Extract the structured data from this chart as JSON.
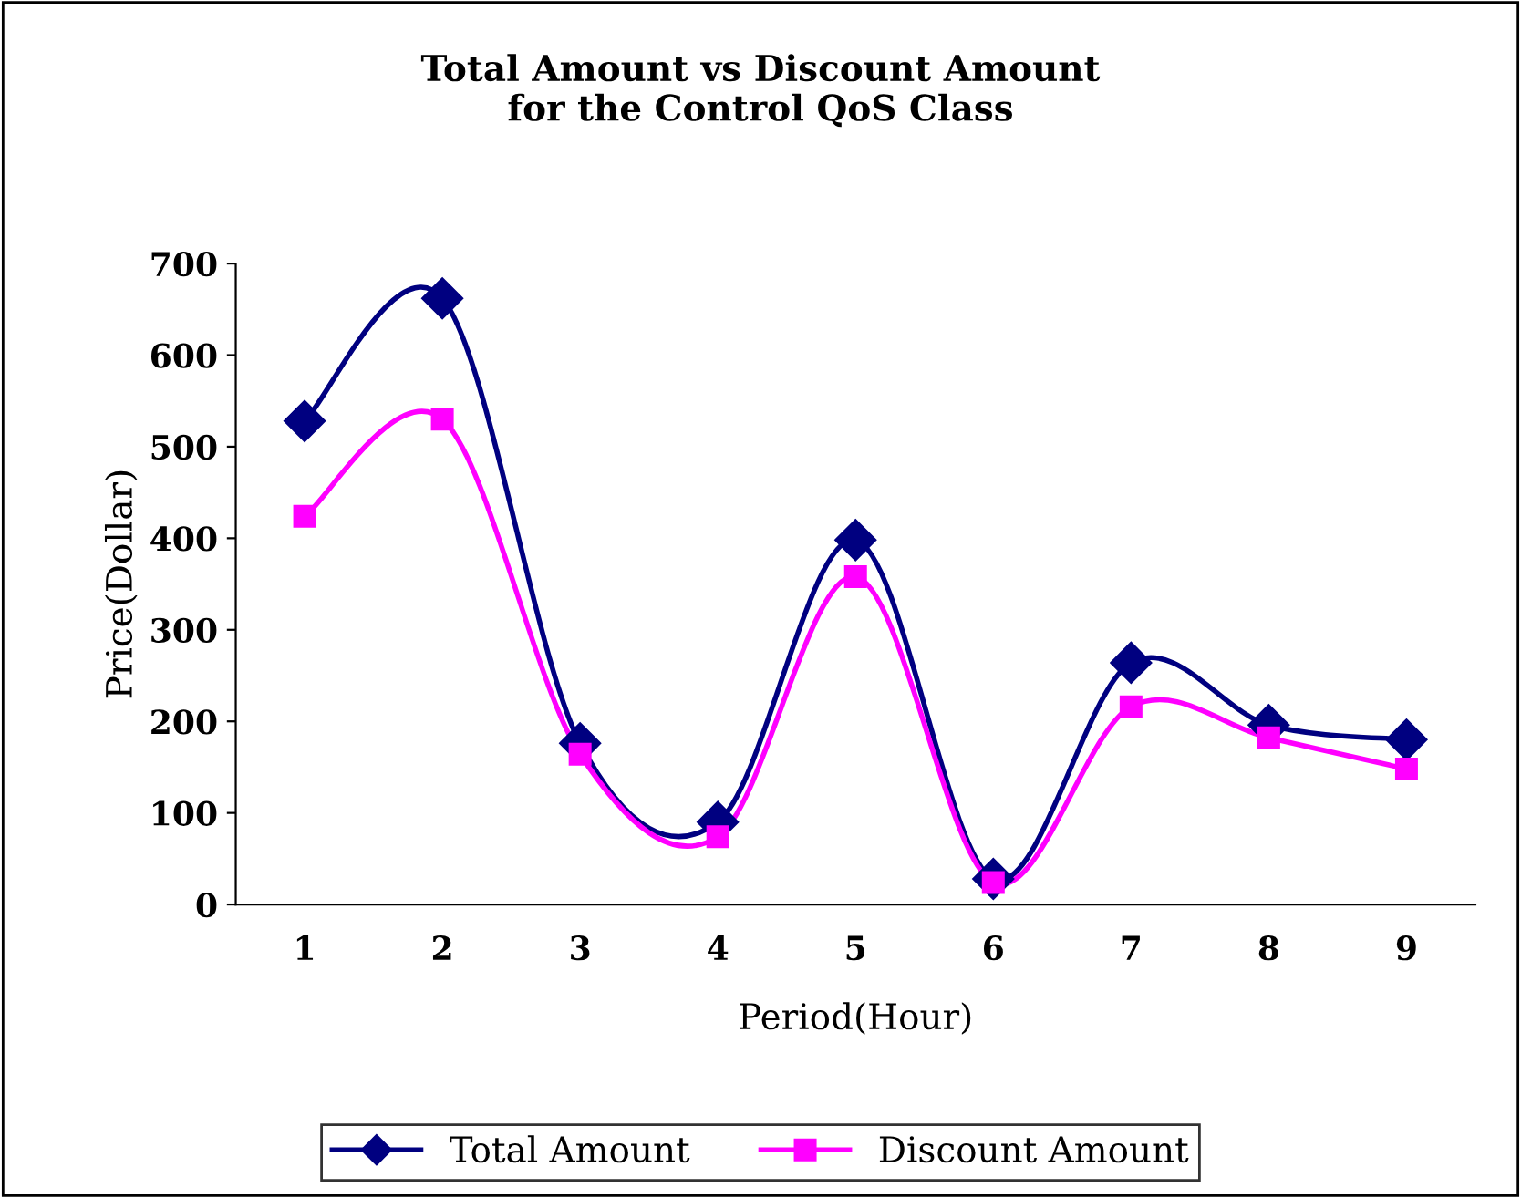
{
  "chart_data": {
    "type": "line",
    "title": "Total Amount vs Discount Amount\nfor the Control QoS Class",
    "xlabel": "Period(Hour)",
    "ylabel": "Price(Dollar)",
    "categories": [
      "1",
      "2",
      "3",
      "4",
      "5",
      "6",
      "7",
      "8",
      "9"
    ],
    "series": [
      {
        "name": "Total Amount",
        "color": "#000080",
        "marker": "diamond",
        "values": [
          528,
          662,
          176,
          90,
          398,
          28,
          264,
          196,
          180
        ]
      },
      {
        "name": "Discount Amount",
        "color": "#ff00ff",
        "marker": "square",
        "values": [
          424,
          530,
          164,
          74,
          358,
          24,
          216,
          182,
          148
        ]
      }
    ],
    "ylim": [
      0,
      700
    ],
    "yticks": [
      0,
      100,
      200,
      300,
      400,
      500,
      600,
      700
    ],
    "grid": false,
    "legend": "bottom"
  }
}
